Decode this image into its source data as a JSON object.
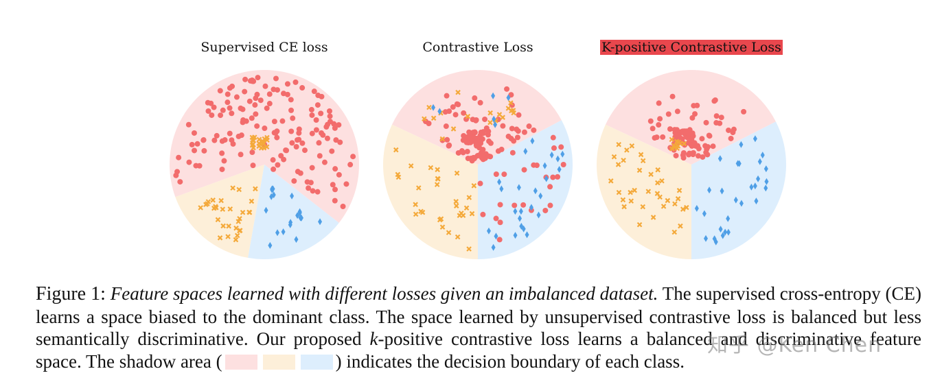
{
  "colors": {
    "red_region": "#fde0e0",
    "orange_region": "#fdefd9",
    "blue_region": "#ddeefd",
    "red_point": "#f26c6c",
    "orange_point": "#f4a93a",
    "blue_point": "#4f9fe6",
    "highlight": "#e9474d"
  },
  "panels": [
    {
      "title": "Supervised CE loss",
      "highlighted": false
    },
    {
      "title": "Contrastive Loss",
      "highlighted": false
    },
    {
      "title": "K-positive Contrastive Loss",
      "highlighted": true
    }
  ],
  "caption": {
    "figure_label": "Figure 1:",
    "italic": "Feature spaces learned with different losses given an imbalanced dataset.",
    "text_1": "The supervised cross-entropy (CE) learns a space biased to the dominant class. The space learned by unsupervised contrastive loss is balanced but less semantically discriminative. Our proposed ",
    "k_symbol": "k",
    "text_2": "-positive contrastive loss learns a balanced and discriminative feature space. The shadow area (",
    "text_3": ") indicates the decision boundary of each class."
  },
  "watermark": "知乎 @Ken Chen"
}
